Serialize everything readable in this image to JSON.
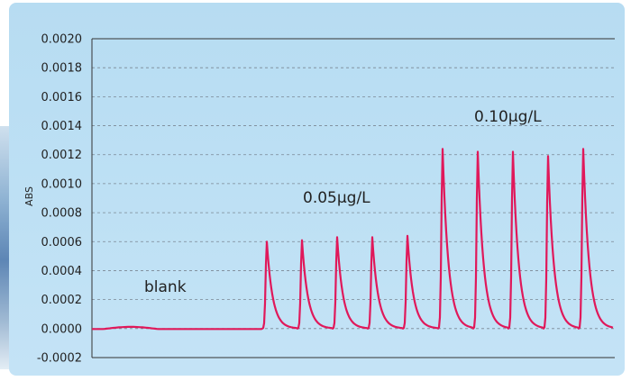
{
  "chart_data": {
    "type": "line",
    "ylabel": "ABS",
    "xlabel": "",
    "ylim": [
      -0.0002,
      0.002
    ],
    "yticks": [
      "0.0020",
      "0.0018",
      "0.0016",
      "0.0014",
      "0.0012",
      "0.0010",
      "0.0008",
      "0.0006",
      "0.0004",
      "0.0002",
      "0.0000",
      "-0.0002"
    ],
    "grid": "horizontal dashed",
    "annotations": [
      "blank",
      "0.05μg/L",
      "0.10μg/L"
    ],
    "series": [
      {
        "color": "#e0185a",
        "peaks": [
          {
            "group": "0.05μg/L",
            "height": 0.0006
          },
          {
            "group": "0.05μg/L",
            "height": 0.00061
          },
          {
            "group": "0.05μg/L",
            "height": 0.00063
          },
          {
            "group": "0.05μg/L",
            "height": 0.00063
          },
          {
            "group": "0.05μg/L",
            "height": 0.00064
          },
          {
            "group": "0.10μg/L",
            "height": 0.00124
          },
          {
            "group": "0.10μg/L",
            "height": 0.00122
          },
          {
            "group": "0.10μg/L",
            "height": 0.00122
          },
          {
            "group": "0.10μg/L",
            "height": 0.00119
          },
          {
            "group": "0.10μg/L",
            "height": 0.00124
          }
        ],
        "baseline": -0.0
      }
    ]
  },
  "colors": {
    "panel": "#bde0f4",
    "line": "#e0185a",
    "grid": "#7a8794",
    "axis": "#333333"
  }
}
